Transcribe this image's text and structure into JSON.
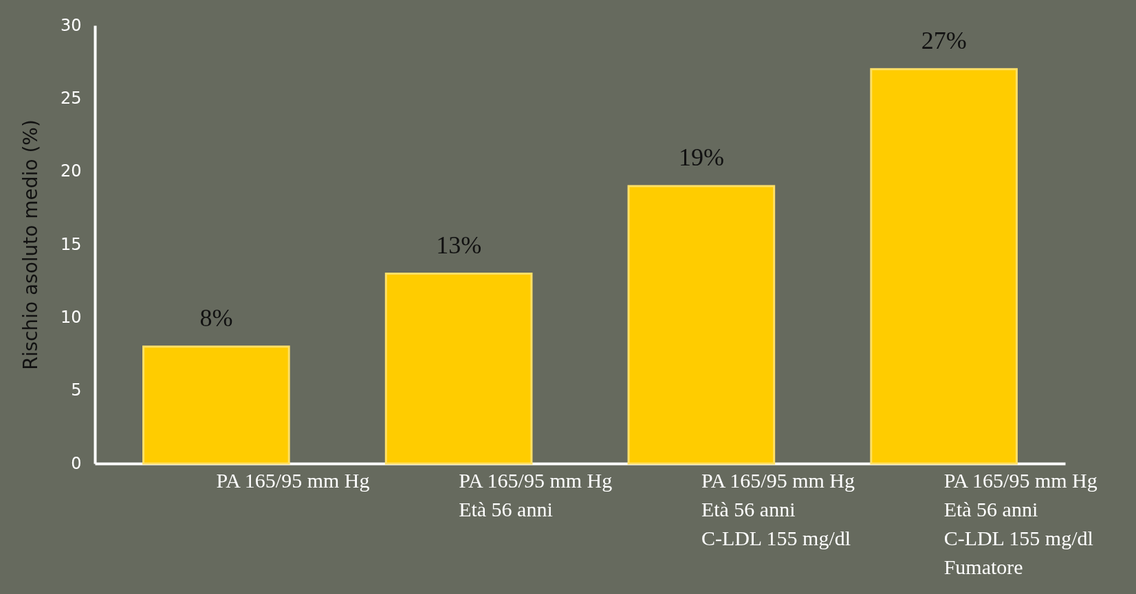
{
  "chart_data": {
    "type": "bar",
    "ylabel": "Rischio asoluto medio (%)",
    "categories": [
      "PA 165/95 mm Hg",
      "PA 165/95 mm Hg\nEtà 56 anni",
      "PA 165/95 mm Hg\nEtà 56 anni\nC-LDL 155 mg/dl",
      "PA 165/95 mm Hg\nEtà 56 anni\nC-LDL 155 mg/dl\nFumatore"
    ],
    "values": [
      8,
      13,
      19,
      27
    ],
    "value_labels": [
      "8%",
      "13%",
      "19%",
      "27%"
    ],
    "color": "#ffcc00",
    "ylim": [
      0,
      30
    ],
    "yticks": [
      0,
      5,
      10,
      15,
      20,
      25,
      30
    ],
    "grid": false
  }
}
